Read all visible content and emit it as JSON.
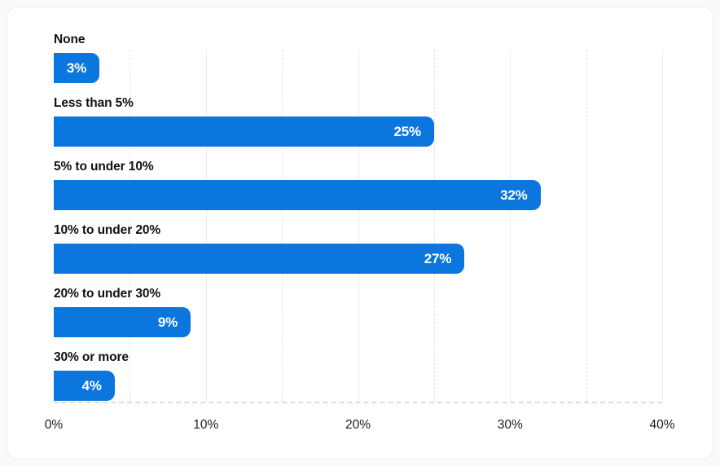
{
  "chart_data": {
    "type": "bar",
    "orientation": "horizontal",
    "title": "",
    "categories": [
      "None",
      "Less than 5%",
      "5% to under 10%",
      "10% to under 20%",
      "20% to under 30%",
      "30% or more"
    ],
    "values": [
      3,
      25,
      32,
      27,
      9,
      4
    ],
    "value_labels": [
      "3%",
      "25%",
      "32%",
      "27%",
      "9%",
      "4%"
    ],
    "xlabel": "",
    "ylabel": "",
    "xlim": [
      0,
      40
    ],
    "x_ticks": [
      {
        "value": 0,
        "label": "0%"
      },
      {
        "value": 10,
        "label": "10%"
      },
      {
        "value": 20,
        "label": "20%"
      },
      {
        "value": 30,
        "label": "30%"
      },
      {
        "value": 40,
        "label": "40%"
      }
    ],
    "grid": {
      "vertical_minor_step": 5,
      "vertical_major_step": 10,
      "minor_style": "dashed",
      "major_style": "solid"
    },
    "legend": "none",
    "colors": {
      "bar": "#0b77de",
      "value_label": "#ffffff",
      "category_label": "#111111",
      "tick_label": "#1c1c1c",
      "gridline_minor": "#e2e2e2",
      "gridline_major": "#ececec",
      "axis_line": "#dcdcdc",
      "card_background": "#ffffff",
      "page_background": "#fafafa"
    }
  }
}
